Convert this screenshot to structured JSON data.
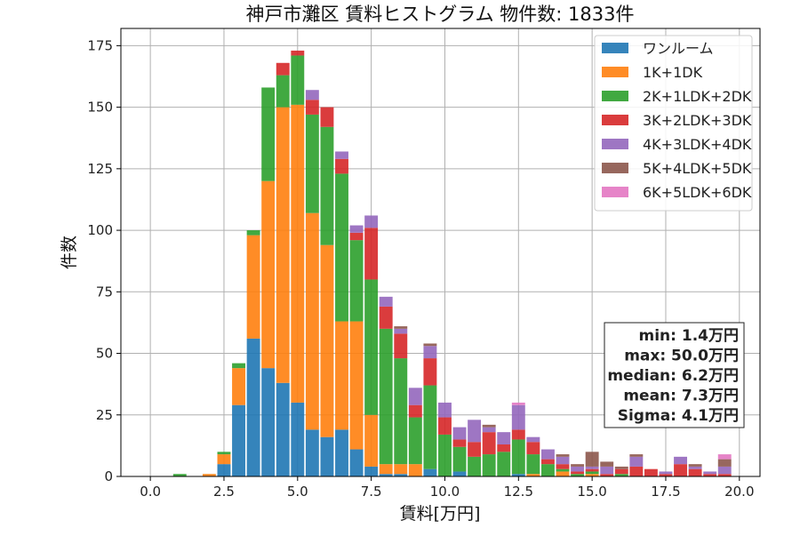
{
  "chart_data": {
    "type": "bar",
    "stacked": true,
    "title": "神戸市灘区 賃料ヒストグラム 物件数: 1833件",
    "xlabel": "賃料[万円]",
    "ylabel": "件数",
    "xlim": [
      -1.0,
      20.7
    ],
    "ylim": [
      0,
      182
    ],
    "xticks": [
      "0.0",
      "2.5",
      "5.0",
      "7.5",
      "10.0",
      "12.5",
      "15.0",
      "17.5",
      "20.0"
    ],
    "xtick_values": [
      0,
      2.5,
      5,
      7.5,
      10,
      12.5,
      15,
      17.5,
      20
    ],
    "yticks": [
      "0",
      "25",
      "50",
      "75",
      "100",
      "125",
      "150",
      "175"
    ],
    "ytick_values": [
      0,
      25,
      50,
      75,
      100,
      125,
      150,
      175
    ],
    "grid": true,
    "legend_position": "top-right",
    "x": [
      0,
      0.5,
      1,
      1.5,
      2,
      2.5,
      3,
      3.5,
      4,
      4.5,
      5,
      5.5,
      6,
      6.5,
      7,
      7.5,
      8,
      8.5,
      9,
      9.5,
      10,
      10.5,
      11,
      11.5,
      12,
      12.5,
      13,
      13.5,
      14,
      14.5,
      15,
      15.5,
      16,
      16.5,
      17,
      17.5,
      18,
      18.5,
      19,
      19.5
    ],
    "series": [
      {
        "name": "ワンルーム",
        "color": "#1f77b4",
        "values": [
          0,
          0,
          0,
          0,
          0,
          5,
          29,
          56,
          44,
          38,
          30,
          19,
          16,
          19,
          11,
          4,
          1,
          1,
          0,
          3,
          0,
          2,
          0,
          0,
          0,
          1,
          0,
          0,
          0,
          0,
          0,
          0,
          0,
          0,
          0,
          0,
          0,
          0,
          0,
          0
        ]
      },
      {
        "name": "1K+1DK",
        "color": "#ff7f0e",
        "values": [
          0,
          0,
          0,
          0,
          1,
          4,
          15,
          42,
          76,
          112,
          121,
          88,
          78,
          44,
          52,
          21,
          4,
          4,
          5,
          0,
          0,
          0,
          0,
          0,
          0,
          0,
          1,
          0,
          2,
          0,
          1,
          0,
          0,
          0,
          0,
          0,
          0,
          0,
          0,
          0
        ]
      },
      {
        "name": "2K+1LDK+2DK",
        "color": "#2ca02c",
        "values": [
          0,
          0,
          1,
          0,
          0,
          1,
          2,
          2,
          38,
          13,
          20,
          40,
          48,
          60,
          33,
          55,
          55,
          43,
          19,
          34,
          17,
          10,
          8,
          9,
          10,
          14,
          8,
          5,
          1,
          1,
          1,
          0,
          1,
          0,
          0,
          0,
          0,
          0,
          0,
          0
        ]
      },
      {
        "name": "3K+2LDK+3DK",
        "color": "#d62728",
        "values": [
          0,
          0,
          0,
          0,
          0,
          0,
          0,
          0,
          0,
          5,
          2,
          6,
          8,
          6,
          3,
          21,
          9,
          10,
          5,
          11,
          7,
          3,
          6,
          9,
          3,
          4,
          5,
          2,
          2,
          1,
          1,
          1,
          2,
          4,
          3,
          1,
          5,
          3,
          1,
          1
        ]
      },
      {
        "name": "4K+3LDK+4DK",
        "color": "#9467bd",
        "values": [
          0,
          0,
          0,
          0,
          0,
          0,
          0,
          0,
          0,
          0,
          0,
          4,
          0,
          3,
          3,
          5,
          4,
          2,
          7,
          5,
          6,
          5,
          9,
          2,
          5,
          10,
          2,
          4,
          3,
          2,
          1,
          3,
          0,
          4,
          0,
          1,
          3,
          1,
          1,
          3
        ]
      },
      {
        "name": "5K+4LDK+5DK",
        "color": "#8c564b",
        "values": [
          0,
          0,
          0,
          0,
          0,
          0,
          0,
          0,
          0,
          0,
          0,
          0,
          0,
          0,
          0,
          0,
          0,
          1,
          0,
          1,
          0,
          0,
          0,
          1,
          0,
          0,
          0,
          0,
          1,
          1,
          6,
          2,
          1,
          1,
          0,
          0,
          0,
          1,
          0,
          3
        ]
      },
      {
        "name": "6K+5LDK+6DK",
        "color": "#e377c2",
        "values": [
          0,
          0,
          0,
          0,
          0,
          0,
          0,
          0,
          0,
          0,
          0,
          0,
          0,
          0,
          0,
          0,
          0,
          0,
          0,
          0,
          0,
          0,
          0,
          0,
          0,
          1,
          0,
          0,
          0,
          0,
          0,
          0,
          0,
          0,
          0,
          0,
          0,
          0,
          0,
          2
        ]
      }
    ],
    "stats": [
      "min: 1.4万円",
      "max: 50.0万円",
      "median: 6.2万円",
      "mean: 7.3万円",
      "Sigma: 4.1万円"
    ]
  }
}
